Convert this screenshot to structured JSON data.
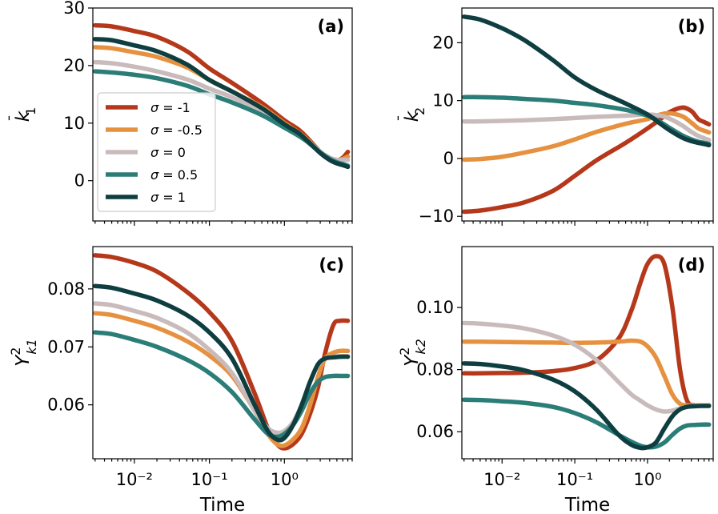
{
  "chart_data": [
    {
      "type": "line",
      "panel": "(a)",
      "xlabel": "",
      "ylabel_base": "k",
      "ylabel_accent": "¯",
      "ylabel_sub": "1",
      "x_scale": "log",
      "xlim": [
        0.0028,
        8.0
      ],
      "ylim": [
        -7,
        30
      ],
      "yticks": [
        "30",
        "20",
        "10",
        "0"
      ],
      "ytick_values": [
        30,
        20,
        10,
        0
      ],
      "xtick_labels": [],
      "x": [
        0.003,
        0.005,
        0.01,
        0.02,
        0.05,
        0.1,
        0.2,
        0.5,
        1.0,
        1.5,
        2.0,
        3.0,
        4.0,
        5.0,
        6.0,
        7.0
      ],
      "series": [
        {
          "name": "σ = -1",
          "values": [
            27.0,
            26.8,
            26.0,
            25.0,
            22.5,
            19.5,
            17.0,
            13.5,
            10.5,
            9.0,
            7.5,
            5.0,
            3.8,
            3.5,
            4.0,
            5.0
          ]
        },
        {
          "name": "σ = -0.5",
          "values": [
            23.2,
            23.0,
            22.3,
            21.5,
            19.7,
            17.5,
            15.5,
            12.8,
            10.0,
            8.5,
            7.2,
            5.0,
            4.0,
            3.6,
            3.8,
            4.2
          ]
        },
        {
          "name": "σ = 0",
          "values": [
            20.6,
            20.4,
            19.8,
            19.0,
            17.6,
            16.0,
            14.5,
            12.0,
            9.6,
            8.2,
            7.0,
            5.0,
            4.0,
            3.6,
            3.6,
            3.6
          ]
        },
        {
          "name": "σ = 0.5",
          "values": [
            19.0,
            18.8,
            18.4,
            17.8,
            16.5,
            15.0,
            13.6,
            11.4,
            9.2,
            7.9,
            6.8,
            4.9,
            3.8,
            3.2,
            2.9,
            2.6
          ]
        },
        {
          "name": "σ = 1",
          "values": [
            24.6,
            24.4,
            23.5,
            22.5,
            20.2,
            17.5,
            15.5,
            12.6,
            9.8,
            8.4,
            7.0,
            4.8,
            3.6,
            3.0,
            2.7,
            2.4
          ]
        }
      ]
    },
    {
      "type": "line",
      "panel": "(b)",
      "xlabel": "",
      "ylabel_base": "k",
      "ylabel_accent": "¯",
      "ylabel_sub": "2",
      "x_scale": "log",
      "xlim": [
        0.0028,
        8.0
      ],
      "ylim": [
        -10.8,
        26.0
      ],
      "yticks": [
        "20",
        "10",
        "0",
        "−10"
      ],
      "ytick_values": [
        20,
        10,
        0,
        -10
      ],
      "xtick_labels": [],
      "x": [
        0.003,
        0.005,
        0.01,
        0.02,
        0.05,
        0.1,
        0.2,
        0.5,
        1.0,
        1.5,
        2.0,
        3.0,
        4.0,
        5.0,
        6.0,
        7.0
      ],
      "series": [
        {
          "name": "σ = -1",
          "values": [
            -9.2,
            -9.0,
            -8.4,
            -7.6,
            -5.6,
            -3.0,
            -0.3,
            2.7,
            5.2,
            6.8,
            8.0,
            8.8,
            8.2,
            6.8,
            6.3,
            5.9
          ]
        },
        {
          "name": "σ = -0.5",
          "values": [
            -0.2,
            -0.1,
            0.3,
            1.0,
            2.1,
            3.3,
            4.6,
            6.0,
            6.8,
            7.6,
            7.8,
            7.3,
            6.2,
            5.2,
            4.8,
            4.5
          ]
        },
        {
          "name": "σ = 0",
          "values": [
            6.4,
            6.4,
            6.5,
            6.6,
            6.8,
            7.0,
            7.2,
            7.4,
            7.6,
            7.4,
            6.9,
            5.7,
            4.6,
            3.9,
            3.5,
            3.2
          ]
        },
        {
          "name": "σ = 0.5",
          "values": [
            10.6,
            10.6,
            10.5,
            10.3,
            10.0,
            9.6,
            9.2,
            8.4,
            7.4,
            6.3,
            5.3,
            4.0,
            3.3,
            2.9,
            2.7,
            2.5
          ]
        },
        {
          "name": "σ = 1",
          "values": [
            24.5,
            24.0,
            22.5,
            20.5,
            17.0,
            14.0,
            11.8,
            9.5,
            7.6,
            6.0,
            4.9,
            3.6,
            3.0,
            2.7,
            2.5,
            2.3
          ]
        }
      ]
    },
    {
      "type": "line",
      "panel": "(c)",
      "xlabel": "Time",
      "ylabel_base": "Y",
      "ylabel_sup": "2",
      "ylabel_sub": "k1",
      "x_scale": "log",
      "xlim": [
        0.0028,
        8.0
      ],
      "xticks": [
        0.01,
        0.1,
        1.0
      ],
      "xtick_labels": [
        "10⁻²",
        "10⁻¹",
        "10⁰"
      ],
      "ylim": [
        0.0507,
        0.0873
      ],
      "yticks": [
        "0.08",
        "0.07",
        "0.06"
      ],
      "ytick_values": [
        0.08,
        0.07,
        0.06
      ],
      "x": [
        0.003,
        0.005,
        0.01,
        0.02,
        0.05,
        0.1,
        0.2,
        0.4,
        0.6,
        0.8,
        1.0,
        1.3,
        1.7,
        2.2,
        2.8,
        3.5,
        4.5,
        5.5,
        7.0
      ],
      "series": [
        {
          "name": "σ = -1",
          "values": [
            0.0858,
            0.0855,
            0.0845,
            0.083,
            0.0795,
            0.076,
            0.071,
            0.062,
            0.056,
            0.0532,
            0.0525,
            0.0532,
            0.055,
            0.0585,
            0.063,
            0.069,
            0.0738,
            0.0745,
            0.0745
          ]
        },
        {
          "name": "σ = -0.5",
          "values": [
            0.0758,
            0.0755,
            0.0745,
            0.0733,
            0.071,
            0.0685,
            0.065,
            0.059,
            0.055,
            0.0532,
            0.053,
            0.054,
            0.056,
            0.06,
            0.0648,
            0.068,
            0.069,
            0.0693,
            0.0693
          ]
        },
        {
          "name": "σ = 0",
          "values": [
            0.0775,
            0.0772,
            0.0762,
            0.075,
            0.0725,
            0.0695,
            0.0655,
            0.059,
            0.056,
            0.0552,
            0.0555,
            0.057,
            0.06,
            0.064,
            0.0668,
            0.068,
            0.0683,
            0.0684,
            0.0684
          ]
        },
        {
          "name": "σ = 0.5",
          "values": [
            0.0725,
            0.0722,
            0.0712,
            0.07,
            0.0678,
            0.0655,
            0.0622,
            0.0575,
            0.055,
            0.0545,
            0.055,
            0.0565,
            0.059,
            0.062,
            0.064,
            0.0648,
            0.065,
            0.065,
            0.065
          ]
        },
        {
          "name": "σ = 1",
          "values": [
            0.0805,
            0.0802,
            0.0792,
            0.078,
            0.0755,
            0.0725,
            0.068,
            0.06,
            0.0555,
            0.054,
            0.0543,
            0.0565,
            0.06,
            0.064,
            0.067,
            0.068,
            0.0682,
            0.0683,
            0.0683
          ]
        }
      ]
    },
    {
      "type": "line",
      "panel": "(d)",
      "xlabel": "Time",
      "ylabel_base": "Y",
      "ylabel_sup": "2",
      "ylabel_sub": "k2",
      "x_scale": "log",
      "xlim": [
        0.0028,
        8.0
      ],
      "xticks": [
        0.01,
        0.1,
        1.0
      ],
      "xtick_labels": [
        "10⁻²",
        "10⁻¹",
        "10⁰"
      ],
      "ylim": [
        0.0513,
        0.1196
      ],
      "yticks": [
        "0.10",
        "0.08",
        "0.06"
      ],
      "ytick_values": [
        0.1,
        0.08,
        0.06
      ],
      "x": [
        0.003,
        0.005,
        0.01,
        0.02,
        0.05,
        0.1,
        0.2,
        0.4,
        0.6,
        0.8,
        1.0,
        1.3,
        1.7,
        2.2,
        2.8,
        3.5,
        4.5,
        5.5,
        7.0
      ],
      "series": [
        {
          "name": "σ = -1",
          "values": [
            0.0788,
            0.0788,
            0.0789,
            0.079,
            0.0795,
            0.0805,
            0.083,
            0.09,
            0.099,
            0.108,
            0.114,
            0.1165,
            0.114,
            0.1,
            0.08,
            0.07,
            0.0685,
            0.0685,
            0.0685
          ]
        },
        {
          "name": "σ = -0.5",
          "values": [
            0.089,
            0.089,
            0.0889,
            0.0888,
            0.0887,
            0.0886,
            0.0887,
            0.089,
            0.0893,
            0.089,
            0.0875,
            0.084,
            0.078,
            0.072,
            0.069,
            0.0685,
            0.0685,
            0.0685,
            0.0685
          ]
        },
        {
          "name": "σ = 0",
          "values": [
            0.095,
            0.0948,
            0.0942,
            0.0933,
            0.091,
            0.088,
            0.083,
            0.076,
            0.072,
            0.07,
            0.0685,
            0.0672,
            0.0665,
            0.0668,
            0.0675,
            0.068,
            0.0683,
            0.0684,
            0.0684
          ]
        },
        {
          "name": "σ = 0.5",
          "values": [
            0.0703,
            0.0702,
            0.0698,
            0.0693,
            0.068,
            0.066,
            0.063,
            0.059,
            0.0568,
            0.0555,
            0.055,
            0.0552,
            0.0565,
            0.059,
            0.061,
            0.062,
            0.0622,
            0.0623,
            0.0623
          ]
        },
        {
          "name": "σ = 1",
          "values": [
            0.082,
            0.0818,
            0.081,
            0.0798,
            0.0768,
            0.073,
            0.067,
            0.059,
            0.0558,
            0.0548,
            0.055,
            0.0565,
            0.061,
            0.065,
            0.0672,
            0.068,
            0.0682,
            0.0683,
            0.0683
          ]
        }
      ]
    }
  ],
  "legend": {
    "placement": "in panel (a), lower-left",
    "entries": [
      "σ = -1",
      "σ = -0.5",
      "σ = 0",
      "σ = 0.5",
      "σ = 1"
    ]
  },
  "colors": {
    "σ = -1": "#b5381a",
    "σ = -0.5": "#e6913f",
    "σ = 0": "#c9bbbb",
    "σ = 0.5": "#2b7d78",
    "σ = 1": "#0e3e40"
  },
  "grid": false
}
